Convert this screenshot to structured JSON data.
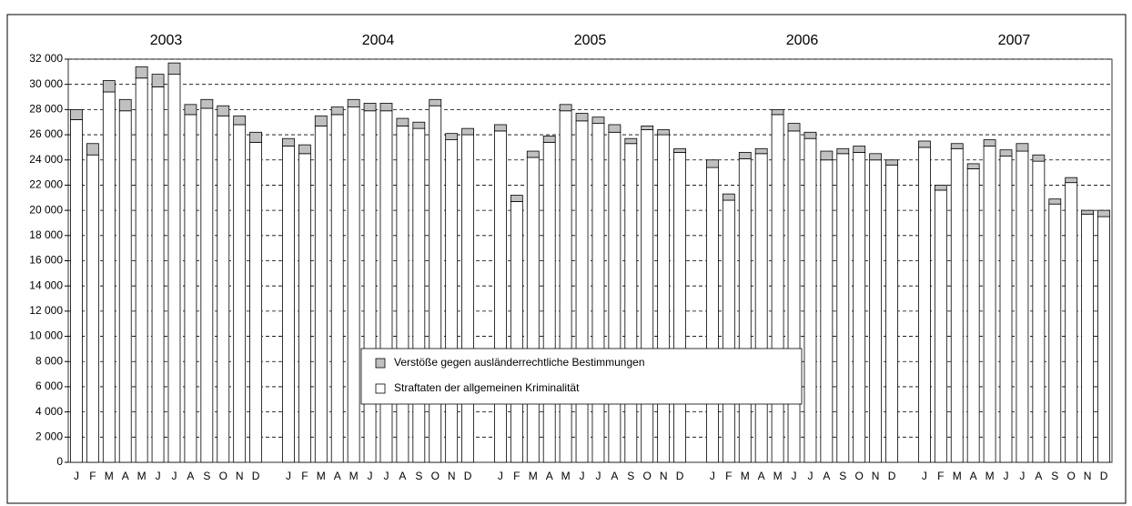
{
  "chart_data": {
    "type": "stacked_bar",
    "year_labels": [
      "2003",
      "2004",
      "2005",
      "2006",
      "2007"
    ],
    "categories": [
      "J",
      "F",
      "M",
      "A",
      "M",
      "J",
      "J",
      "A",
      "S",
      "O",
      "N",
      "D",
      null,
      "J",
      "F",
      "M",
      "A",
      "M",
      "J",
      "J",
      "A",
      "S",
      "O",
      "N",
      "D",
      null,
      "J",
      "F",
      "M",
      "A",
      "M",
      "J",
      "J",
      "A",
      "S",
      "O",
      "N",
      "D",
      null,
      "J",
      "F",
      "M",
      "A",
      "M",
      "J",
      "J",
      "A",
      "S",
      "O",
      "N",
      "D",
      null,
      "J",
      "F",
      "M",
      "A",
      "M",
      "J",
      "J",
      "A",
      "S",
      "O",
      "N",
      "D"
    ],
    "series": [
      {
        "name": "Straftaten der allgemeinen Kriminalität",
        "color": "#ffffff",
        "values": [
          27200,
          24400,
          29400,
          27900,
          30500,
          29800,
          30800,
          27600,
          28100,
          27500,
          26800,
          25400,
          null,
          25100,
          24500,
          26700,
          27600,
          28200,
          27900,
          27900,
          26700,
          26500,
          28300,
          25600,
          26000,
          null,
          26300,
          20700,
          24200,
          25400,
          27900,
          27100,
          26900,
          26200,
          25300,
          26400,
          26000,
          24600,
          null,
          23400,
          20800,
          24100,
          24500,
          27600,
          26300,
          25700,
          24000,
          24500,
          24600,
          24000,
          23600,
          null,
          25000,
          21600,
          24900,
          23300,
          25100,
          24300,
          24700,
          23900,
          20500,
          22200,
          19700,
          19500
        ]
      },
      {
        "name": "Verstöße gegen ausländerrechtliche Bestimmungen",
        "color": "#c0c0c0",
        "values": [
          800,
          900,
          900,
          900,
          900,
          1000,
          900,
          800,
          700,
          800,
          700,
          800,
          null,
          600,
          700,
          800,
          600,
          600,
          600,
          600,
          600,
          500,
          500,
          500,
          500,
          null,
          500,
          500,
          500,
          500,
          500,
          600,
          500,
          600,
          400,
          300,
          400,
          300,
          null,
          600,
          500,
          500,
          400,
          400,
          600,
          500,
          700,
          400,
          500,
          500,
          400,
          null,
          500,
          400,
          400,
          400,
          500,
          500,
          600,
          500,
          400,
          400,
          300,
          500
        ]
      }
    ],
    "ylim": [
      0,
      32000
    ],
    "yticks": [
      0,
      {
        "value": 2000,
        "label": "2 000"
      },
      {
        "value": 4000,
        "label": "4 000"
      },
      {
        "value": 6000,
        "label": "6 000"
      },
      {
        "value": 8000,
        "label": "8 000"
      },
      {
        "value": 10000,
        "label": "10 000"
      },
      {
        "value": 12000,
        "label": "12 000"
      },
      {
        "value": 14000,
        "label": "14 000"
      },
      {
        "value": 16000,
        "label": "16 000"
      },
      {
        "value": 18000,
        "label": "18 000"
      },
      {
        "value": 20000,
        "label": "20 000"
      },
      {
        "value": 22000,
        "label": "22 000"
      },
      {
        "value": 24000,
        "label": "24 000"
      },
      {
        "value": 26000,
        "label": "26 000"
      },
      {
        "value": 28000,
        "label": "28 000"
      },
      {
        "value": 30000,
        "label": "30 000"
      },
      {
        "value": 32000,
        "label": "32 000"
      }
    ],
    "grid": true
  }
}
